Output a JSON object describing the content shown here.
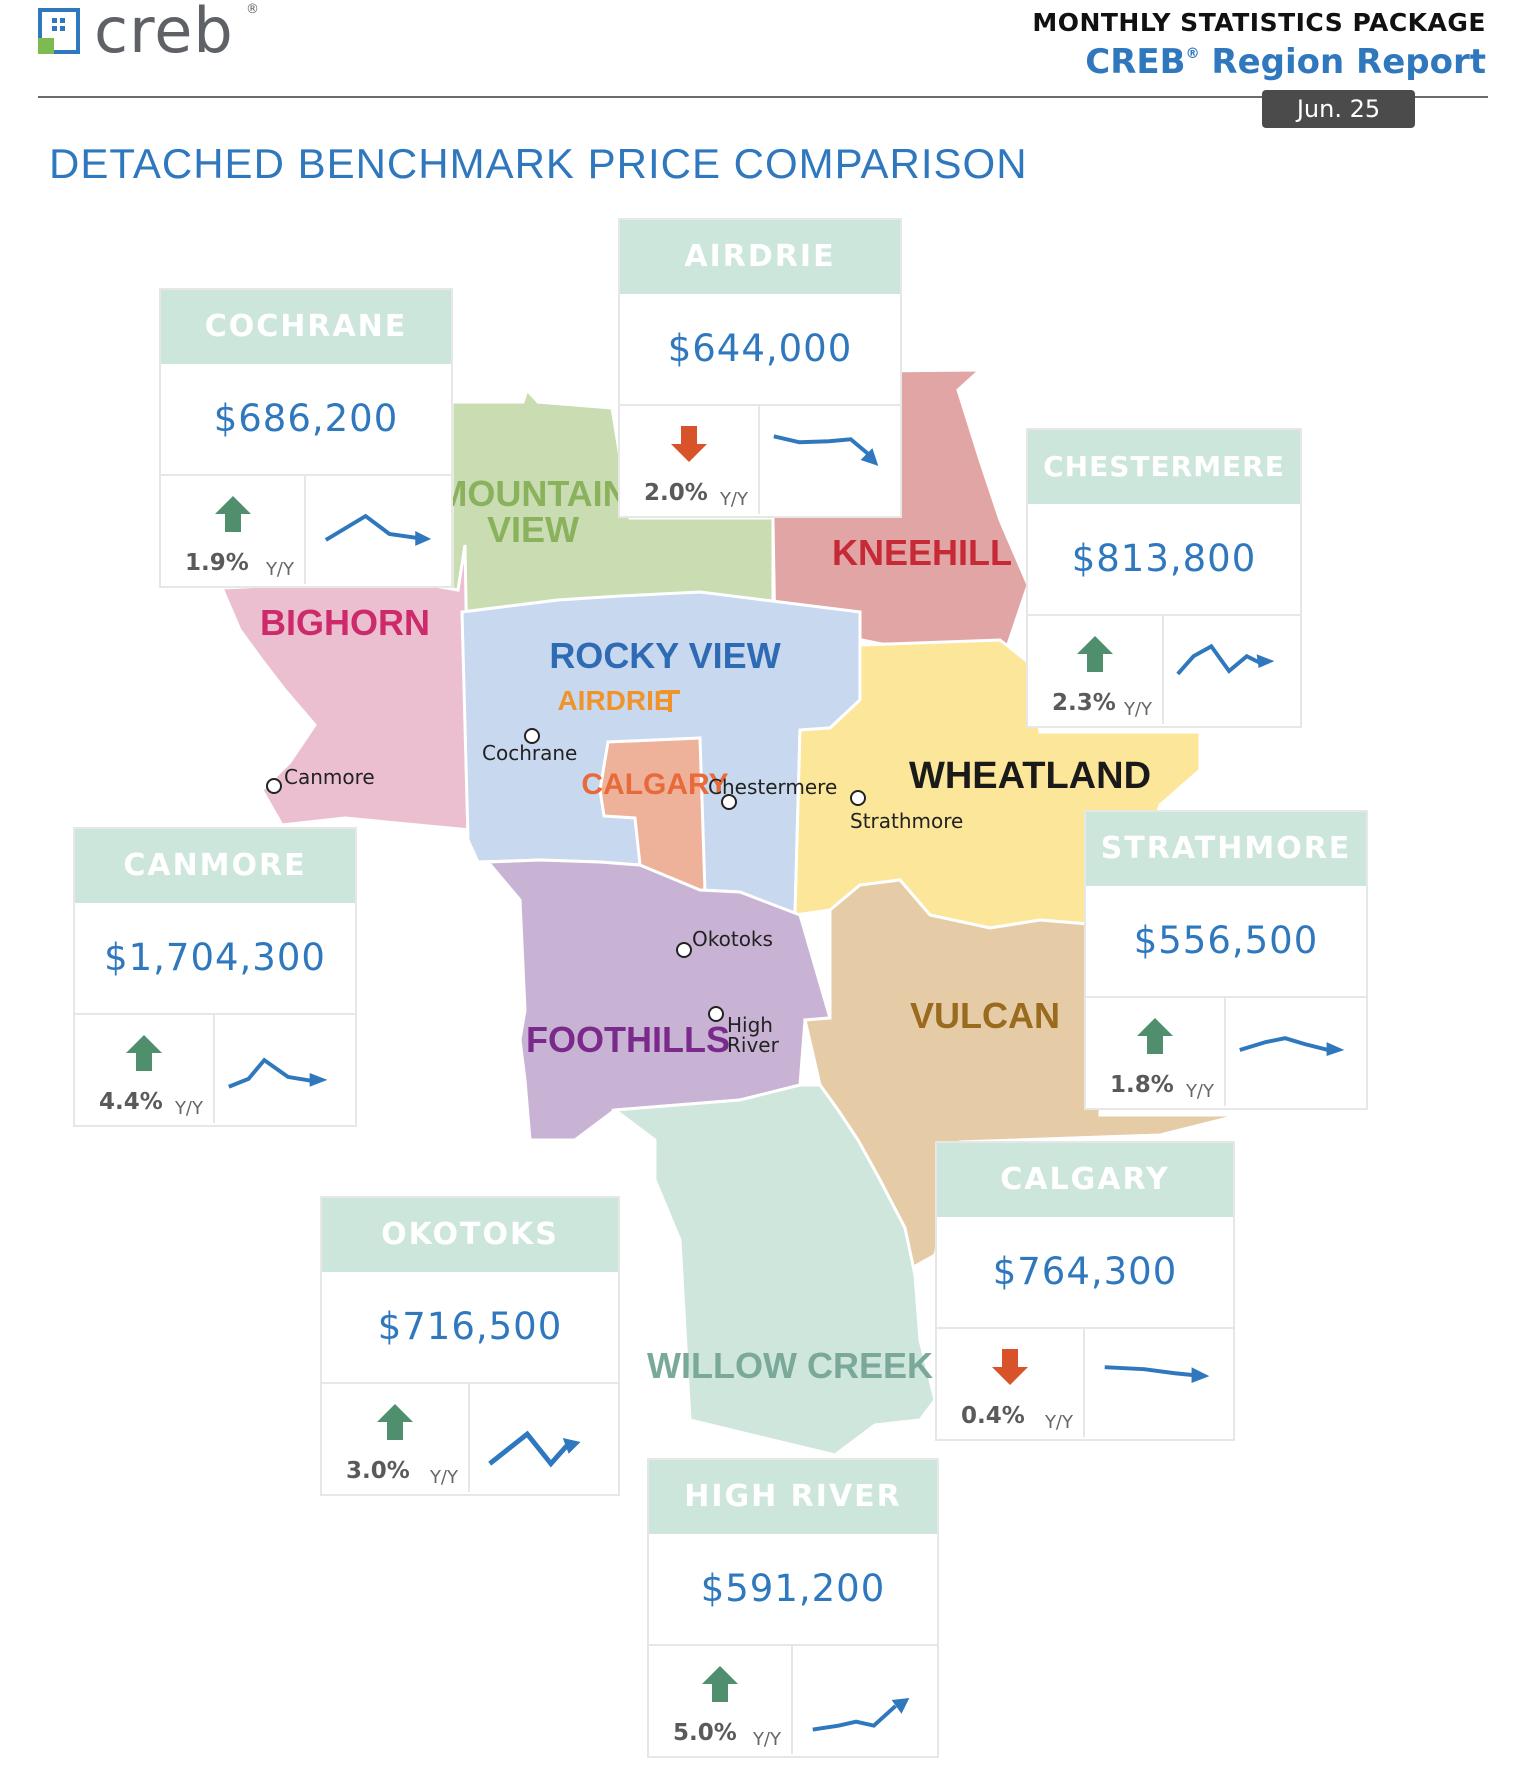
{
  "header": {
    "logo_text": "creb",
    "logo_reg": "®",
    "package_title": "MONTHLY STATISTICS PACKAGE",
    "region_name": "CREB",
    "region_reg": "®",
    "region_suffix": " Region Report",
    "date": "Jun. 25"
  },
  "page_title": "DETACHED BENCHMARK PRICE COMPARISON",
  "map": {
    "regions": [
      "MOUNTAIN",
      "VIEW",
      "KNEEHILL",
      "BIGHORN",
      "ROCKY VIEW",
      "AIRDRIE",
      "CALGARY",
      "WHEATLAND",
      "FOOTHILLS",
      "VULCAN",
      "WILLOW CREEK"
    ],
    "towns": [
      "Cochrane",
      "Canmore",
      "Chestermere",
      "Strathmore",
      "Okotoks",
      "High",
      "River"
    ]
  },
  "cards": [
    {
      "id": "cochrane",
      "name": "COCHRANE",
      "price": "$686,200",
      "change": "1.9%",
      "direction": "up",
      "yy": "Y/Y"
    },
    {
      "id": "airdrie",
      "name": "AIRDRIE",
      "price": "$644,000",
      "change": "2.0%",
      "direction": "down",
      "yy": "Y/Y"
    },
    {
      "id": "chestermere",
      "name": "CHESTERMERE",
      "price": "$813,800",
      "change": "2.3%",
      "direction": "up",
      "yy": "Y/Y"
    },
    {
      "id": "canmore",
      "name": "CANMORE",
      "price": "$1,704,300",
      "change": "4.4%",
      "direction": "up",
      "yy": "Y/Y"
    },
    {
      "id": "strathmore",
      "name": "STRATHMORE",
      "price": "$556,500",
      "change": "1.8%",
      "direction": "up",
      "yy": "Y/Y"
    },
    {
      "id": "calgary",
      "name": "CALGARY",
      "price": "$764,300",
      "change": "0.4%",
      "direction": "down",
      "yy": "Y/Y"
    },
    {
      "id": "okotoks",
      "name": "OKOTOKS",
      "price": "$716,500",
      "change": "3.0%",
      "direction": "up",
      "yy": "Y/Y"
    },
    {
      "id": "highriver",
      "name": "HIGH RIVER",
      "price": "$591,200",
      "change": "5.0%",
      "direction": "up",
      "yy": "Y/Y"
    }
  ],
  "colors": {
    "accent_blue": "#2f78be",
    "card_header": "#cde6dc",
    "up_arrow": "#4f8f6e",
    "down_arrow": "#d9532a"
  }
}
